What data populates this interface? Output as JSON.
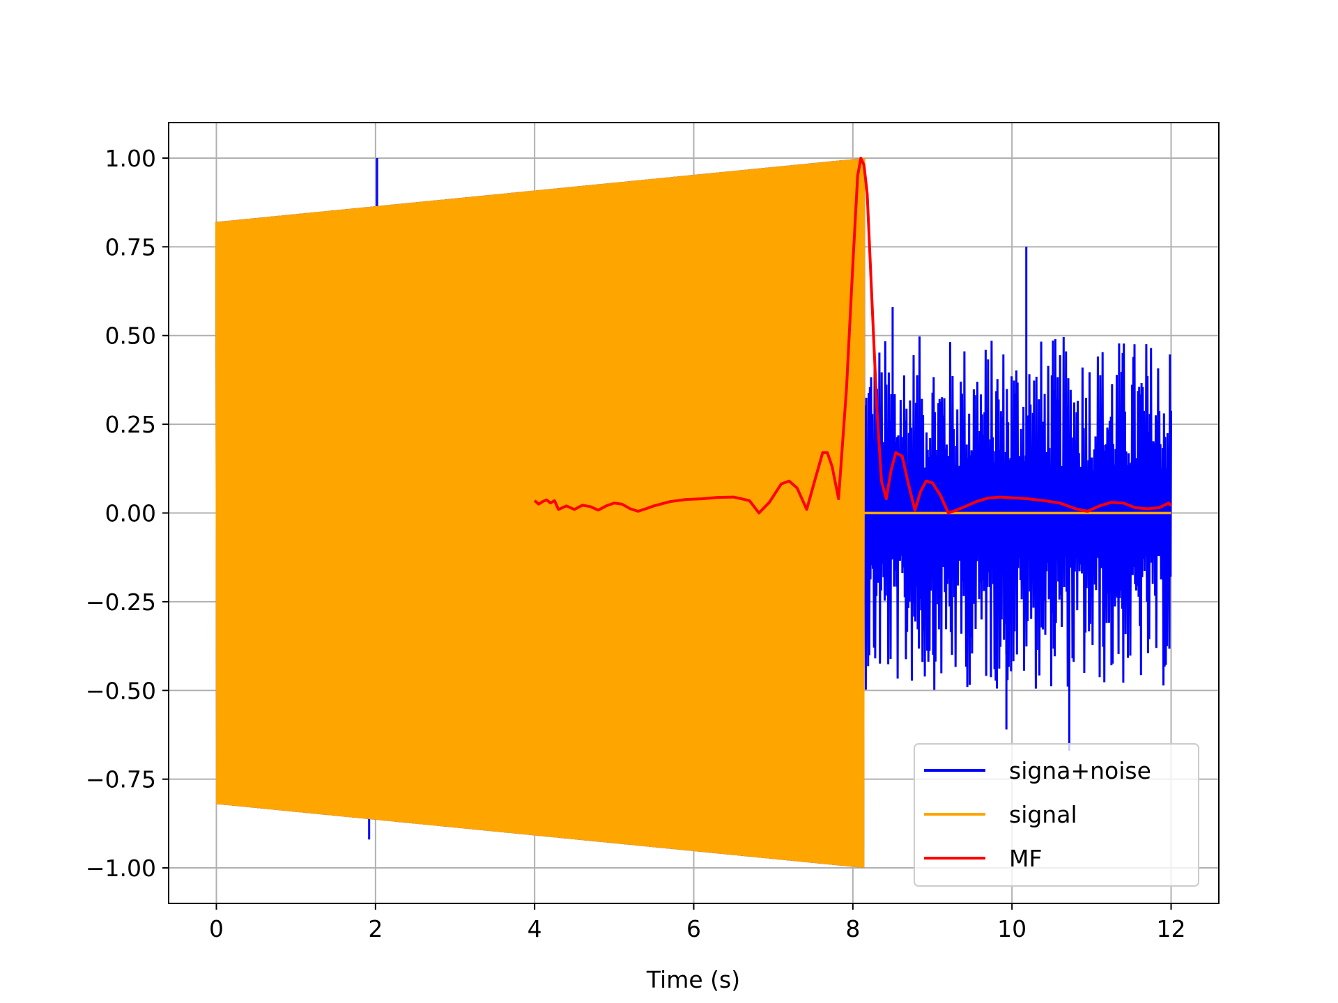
{
  "chart_data": {
    "type": "line",
    "title": "",
    "xlabel": "Time (s)",
    "ylabel": "",
    "xlim": [
      -0.6,
      12.6
    ],
    "ylim": [
      -1.1,
      1.1
    ],
    "grid": true,
    "legend_position": "lower-right",
    "x_ticks": [
      0,
      2,
      4,
      6,
      8,
      10,
      12
    ],
    "x_tick_labels": [
      "0",
      "2",
      "4",
      "6",
      "8",
      "10",
      "12"
    ],
    "y_ticks": [
      1.0,
      0.75,
      0.5,
      0.25,
      0.0,
      -0.25,
      -0.5,
      -0.75,
      -1.0
    ],
    "y_tick_labels": [
      "1.00",
      "0.75",
      "0.50",
      "0.25",
      "0.00",
      "−0.25",
      "−0.50",
      "−0.75",
      "−1.00"
    ],
    "series": [
      {
        "name": "signa+noise",
        "color": "#0000ff",
        "envelope_segments": [
          {
            "x": [
              0.0,
              8.14
            ],
            "y_max": [
              0.82,
              1.0
            ],
            "y_min": [
              -0.82,
              -1.0
            ]
          },
          {
            "x": [
              8.14,
              12.0
            ],
            "y_max": [
              0.75,
              0.75
            ],
            "y_min": [
              -0.67,
              -0.67
            ]
          }
        ],
        "spikes": [
          {
            "x": 2.02,
            "y": 1.0
          },
          {
            "x": 1.92,
            "y": -0.92
          },
          {
            "x": 10.18,
            "y": 0.75
          },
          {
            "x": 10.72,
            "y": -0.67
          },
          {
            "x": 8.5,
            "y": 0.58
          },
          {
            "x": 9.93,
            "y": -0.61
          }
        ]
      },
      {
        "name": "signal",
        "color": "#ffa500",
        "segments": [
          {
            "x": [
              0.0,
              8.14
            ],
            "y_max": [
              0.82,
              1.0
            ],
            "y_min": [
              -0.82,
              -1.0
            ]
          },
          {
            "x": [
              8.14,
              12.0
            ],
            "y": [
              0.0,
              0.0
            ]
          }
        ]
      },
      {
        "name": "MF",
        "color": "#ff0000",
        "x": [
          4.0,
          4.05,
          4.1,
          4.15,
          4.2,
          4.25,
          4.3,
          4.4,
          4.5,
          4.6,
          4.7,
          4.8,
          4.9,
          5.0,
          5.1,
          5.2,
          5.3,
          5.4,
          5.5,
          5.7,
          5.9,
          6.1,
          6.3,
          6.5,
          6.7,
          6.82,
          6.95,
          7.1,
          7.2,
          7.3,
          7.42,
          7.52,
          7.62,
          7.68,
          7.74,
          7.82,
          7.92,
          8.0,
          8.06,
          8.1,
          8.14,
          8.18,
          8.24,
          8.3,
          8.36,
          8.42,
          8.48,
          8.54,
          8.62,
          8.7,
          8.78,
          8.85,
          8.92,
          9.0,
          9.1,
          9.2,
          9.3,
          9.43,
          9.55,
          9.7,
          9.85,
          10.0,
          10.2,
          10.4,
          10.6,
          10.8,
          10.95,
          11.1,
          11.25,
          11.4,
          11.55,
          11.7,
          11.85,
          11.97,
          12.0
        ],
        "y": [
          0.035,
          0.025,
          0.032,
          0.037,
          0.028,
          0.035,
          0.01,
          0.02,
          0.01,
          0.022,
          0.018,
          0.008,
          0.02,
          0.028,
          0.025,
          0.012,
          0.005,
          0.012,
          0.02,
          0.032,
          0.038,
          0.04,
          0.044,
          0.045,
          0.035,
          0.0,
          0.03,
          0.082,
          0.09,
          0.07,
          0.01,
          0.09,
          0.17,
          0.17,
          0.13,
          0.04,
          0.35,
          0.7,
          0.95,
          1.0,
          0.98,
          0.9,
          0.6,
          0.3,
          0.09,
          0.04,
          0.12,
          0.17,
          0.16,
          0.08,
          0.008,
          0.06,
          0.09,
          0.085,
          0.05,
          0.0,
          0.008,
          0.02,
          0.032,
          0.042,
          0.045,
          0.043,
          0.04,
          0.035,
          0.028,
          0.012,
          0.005,
          0.02,
          0.03,
          0.028,
          0.015,
          0.012,
          0.015,
          0.028,
          0.02
        ]
      }
    ]
  }
}
